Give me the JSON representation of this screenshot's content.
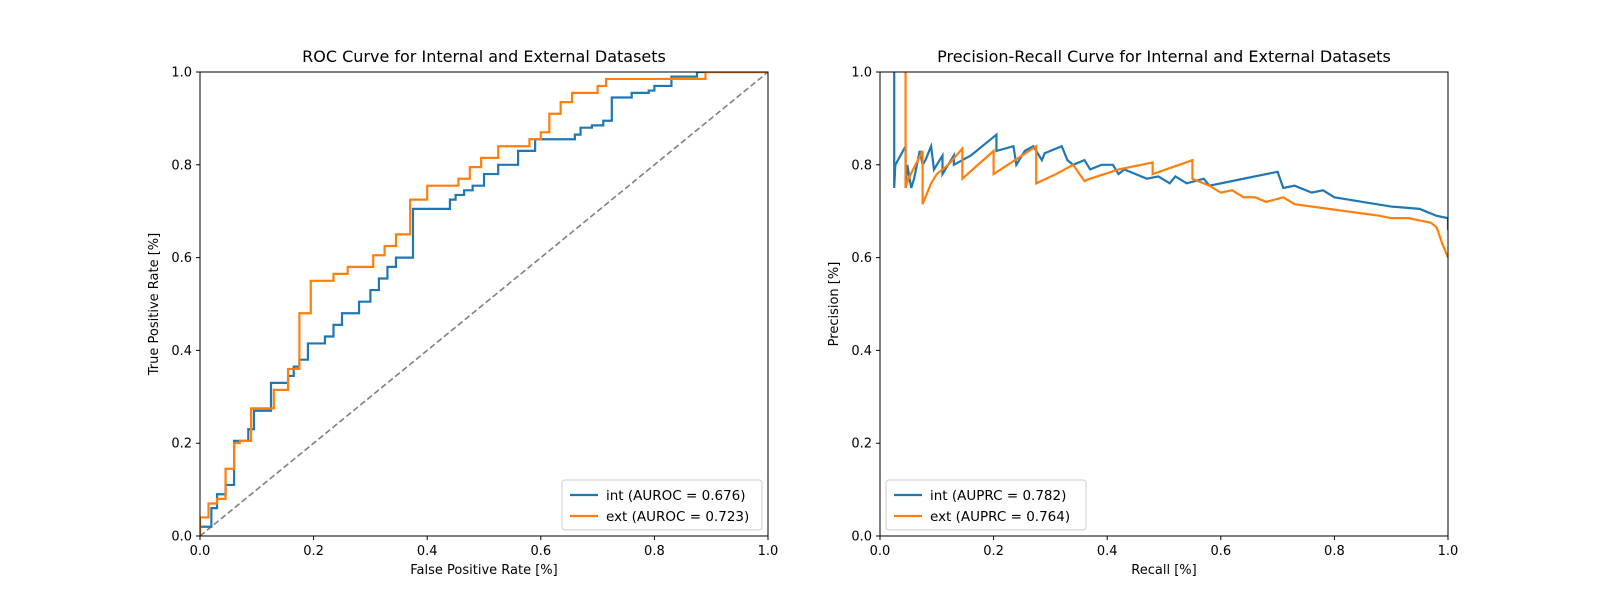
{
  "chart_data": [
    {
      "type": "line",
      "title": "ROC Curve for Internal and External Datasets",
      "xlabel": "False Positive Rate [%]",
      "ylabel": "True Positive Rate [%]",
      "xlim": [
        0,
        1
      ],
      "ylim": [
        0,
        1
      ],
      "xticks": [
        "0.0",
        "0.2",
        "0.4",
        "0.6",
        "0.8",
        "1.0"
      ],
      "yticks": [
        "0.0",
        "0.2",
        "0.4",
        "0.6",
        "0.8",
        "1.0"
      ],
      "grid": false,
      "legend_position": "bottom-right",
      "reference_line": {
        "x": [
          0,
          1
        ],
        "y": [
          0,
          1
        ],
        "color": "#808080",
        "style": "dashed"
      },
      "series": [
        {
          "name": "int (AUROC = 0.676)",
          "color": "#1f77b4",
          "x": [
            0,
            0,
            0.02,
            0.02,
            0.03,
            0.03,
            0.045,
            0.045,
            0.06,
            0.06,
            0.085,
            0.085,
            0.095,
            0.095,
            0.125,
            0.125,
            0.155,
            0.155,
            0.165,
            0.165,
            0.175,
            0.175,
            0.19,
            0.19,
            0.22,
            0.22,
            0.235,
            0.235,
            0.25,
            0.25,
            0.28,
            0.28,
            0.3,
            0.3,
            0.315,
            0.315,
            0.33,
            0.33,
            0.345,
            0.345,
            0.375,
            0.375,
            0.44,
            0.44,
            0.45,
            0.45,
            0.465,
            0.465,
            0.48,
            0.48,
            0.5,
            0.5,
            0.525,
            0.525,
            0.56,
            0.56,
            0.59,
            0.59,
            0.66,
            0.66,
            0.67,
            0.67,
            0.69,
            0.69,
            0.71,
            0.71,
            0.725,
            0.725,
            0.76,
            0.76,
            0.79,
            0.79,
            0.8,
            0.8,
            0.83,
            0.83,
            0.875,
            0.875,
            0.9,
            0.9,
            1.0
          ],
          "y": [
            0,
            0.02,
            0.02,
            0.06,
            0.06,
            0.09,
            0.09,
            0.11,
            0.11,
            0.205,
            0.205,
            0.23,
            0.23,
            0.27,
            0.27,
            0.33,
            0.33,
            0.345,
            0.345,
            0.365,
            0.365,
            0.38,
            0.38,
            0.415,
            0.415,
            0.43,
            0.43,
            0.455,
            0.455,
            0.48,
            0.48,
            0.505,
            0.505,
            0.53,
            0.53,
            0.555,
            0.555,
            0.58,
            0.58,
            0.6,
            0.6,
            0.705,
            0.705,
            0.725,
            0.725,
            0.735,
            0.735,
            0.745,
            0.745,
            0.755,
            0.755,
            0.78,
            0.78,
            0.8,
            0.8,
            0.83,
            0.83,
            0.855,
            0.855,
            0.865,
            0.865,
            0.88,
            0.88,
            0.885,
            0.885,
            0.895,
            0.895,
            0.945,
            0.945,
            0.955,
            0.955,
            0.96,
            0.96,
            0.97,
            0.97,
            0.99,
            0.99,
            1.0,
            1.0,
            1.0,
            1.0
          ]
        },
        {
          "name": "ext (AUROC = 0.723)",
          "color": "#ff7f0e",
          "x": [
            0,
            0,
            0.015,
            0.015,
            0.03,
            0.03,
            0.045,
            0.045,
            0.06,
            0.06,
            0.07,
            0.07,
            0.09,
            0.09,
            0.13,
            0.13,
            0.155,
            0.155,
            0.175,
            0.175,
            0.195,
            0.195,
            0.235,
            0.235,
            0.26,
            0.26,
            0.305,
            0.305,
            0.325,
            0.325,
            0.345,
            0.345,
            0.37,
            0.37,
            0.4,
            0.4,
            0.455,
            0.455,
            0.475,
            0.475,
            0.495,
            0.495,
            0.525,
            0.525,
            0.58,
            0.58,
            0.6,
            0.6,
            0.615,
            0.615,
            0.635,
            0.635,
            0.655,
            0.655,
            0.7,
            0.7,
            0.715,
            0.715,
            0.89,
            0.89,
            1.0
          ],
          "y": [
            0,
            0.04,
            0.04,
            0.07,
            0.07,
            0.08,
            0.08,
            0.145,
            0.145,
            0.2,
            0.2,
            0.205,
            0.205,
            0.275,
            0.275,
            0.315,
            0.315,
            0.36,
            0.36,
            0.48,
            0.48,
            0.55,
            0.55,
            0.565,
            0.565,
            0.58,
            0.58,
            0.605,
            0.605,
            0.625,
            0.625,
            0.65,
            0.65,
            0.725,
            0.725,
            0.755,
            0.755,
            0.77,
            0.77,
            0.795,
            0.795,
            0.815,
            0.815,
            0.84,
            0.84,
            0.855,
            0.855,
            0.87,
            0.87,
            0.91,
            0.91,
            0.935,
            0.935,
            0.955,
            0.955,
            0.97,
            0.97,
            0.985,
            0.985,
            1.0,
            1.0
          ]
        }
      ]
    },
    {
      "type": "line",
      "title": "Precision-Recall Curve for Internal and External Datasets",
      "xlabel": "Recall [%]",
      "ylabel": "Precision [%]",
      "xlim": [
        0,
        1
      ],
      "ylim": [
        0,
        1
      ],
      "xticks": [
        "0.0",
        "0.2",
        "0.4",
        "0.6",
        "0.8",
        "1.0"
      ],
      "yticks": [
        "0.0",
        "0.2",
        "0.4",
        "0.6",
        "0.8",
        "1.0"
      ],
      "grid": false,
      "legend_position": "bottom-left",
      "series": [
        {
          "name": "int (AUPRC = 0.782)",
          "color": "#1f77b4",
          "x": [
            0.025,
            0.025,
            0.027,
            0.045,
            0.045,
            0.048,
            0.055,
            0.06,
            0.065,
            0.07,
            0.075,
            0.08,
            0.09,
            0.095,
            0.11,
            0.11,
            0.12,
            0.13,
            0.13,
            0.16,
            0.205,
            0.205,
            0.235,
            0.24,
            0.255,
            0.27,
            0.285,
            0.29,
            0.32,
            0.33,
            0.34,
            0.36,
            0.37,
            0.39,
            0.41,
            0.42,
            0.43,
            0.44,
            0.47,
            0.49,
            0.51,
            0.52,
            0.54,
            0.57,
            0.58,
            0.6,
            0.7,
            0.71,
            0.73,
            0.76,
            0.78,
            0.8,
            0.85,
            0.9,
            0.95,
            0.96,
            0.98,
            1.0,
            1.0
          ],
          "y": [
            1.0,
            0.75,
            0.8,
            0.84,
            0.75,
            0.8,
            0.75,
            0.77,
            0.8,
            0.83,
            0.8,
            0.81,
            0.84,
            0.79,
            0.82,
            0.78,
            0.8,
            0.82,
            0.8,
            0.82,
            0.865,
            0.83,
            0.84,
            0.8,
            0.83,
            0.84,
            0.81,
            0.825,
            0.84,
            0.81,
            0.8,
            0.81,
            0.79,
            0.8,
            0.8,
            0.78,
            0.79,
            0.785,
            0.77,
            0.775,
            0.76,
            0.775,
            0.76,
            0.77,
            0.755,
            0.76,
            0.785,
            0.75,
            0.755,
            0.74,
            0.745,
            0.73,
            0.72,
            0.71,
            0.705,
            0.7,
            0.69,
            0.685,
            0.66
          ]
        },
        {
          "name": "ext (AUPRC = 0.764)",
          "color": "#ff7f0e",
          "x": [
            0.045,
            0.045,
            0.05,
            0.075,
            0.075,
            0.09,
            0.1,
            0.12,
            0.145,
            0.145,
            0.2,
            0.2,
            0.25,
            0.275,
            0.275,
            0.31,
            0.34,
            0.36,
            0.37,
            0.42,
            0.48,
            0.48,
            0.55,
            0.55,
            0.58,
            0.6,
            0.62,
            0.64,
            0.66,
            0.68,
            0.71,
            0.73,
            0.76,
            0.79,
            0.82,
            0.85,
            0.88,
            0.9,
            0.93,
            0.95,
            0.97,
            0.98,
            0.99,
            1.0
          ],
          "y": [
            1.0,
            0.75,
            0.77,
            0.83,
            0.715,
            0.76,
            0.78,
            0.8,
            0.835,
            0.77,
            0.83,
            0.78,
            0.82,
            0.84,
            0.76,
            0.78,
            0.8,
            0.765,
            0.77,
            0.79,
            0.805,
            0.78,
            0.81,
            0.77,
            0.755,
            0.74,
            0.745,
            0.73,
            0.73,
            0.72,
            0.73,
            0.715,
            0.71,
            0.705,
            0.7,
            0.695,
            0.69,
            0.685,
            0.685,
            0.68,
            0.675,
            0.665,
            0.63,
            0.6
          ]
        }
      ]
    }
  ]
}
